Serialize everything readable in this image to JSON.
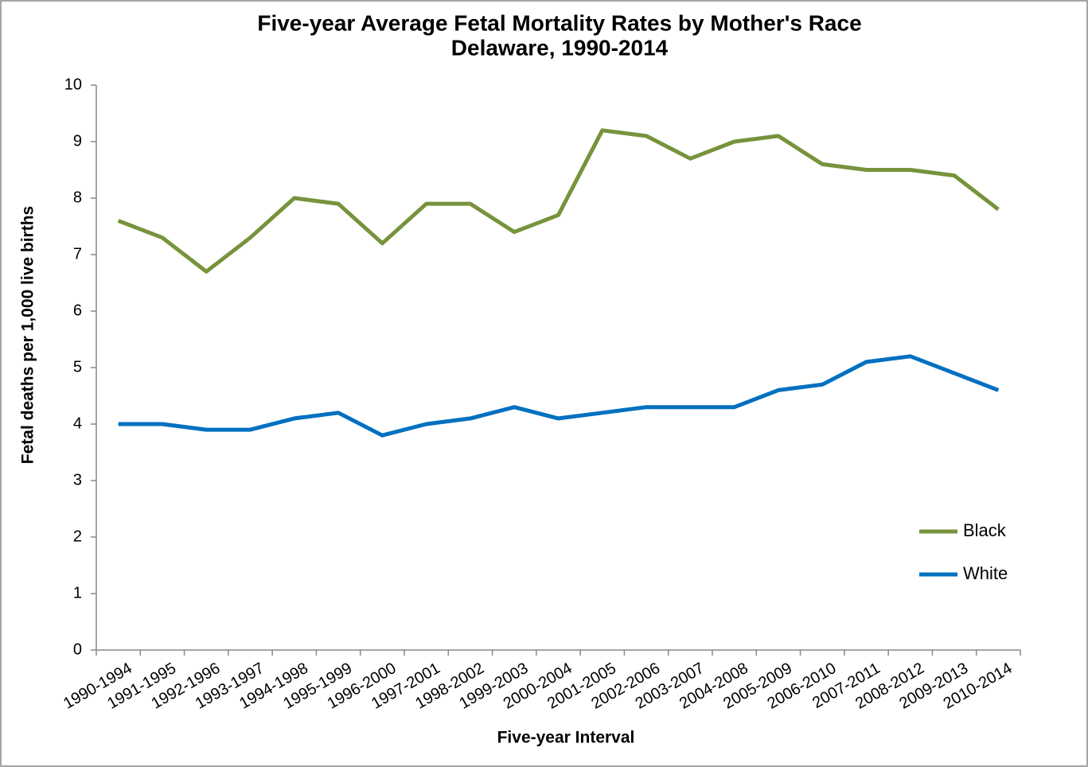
{
  "chart_data": {
    "type": "line",
    "title": "Five-year Average Fetal Mortality Rates by Mother's Race",
    "subtitle": "Delaware, 1990-2014",
    "x_label": "Five-year Interval",
    "y_label": "Fetal deaths per 1,000 live births",
    "categories": [
      "1990-1994",
      "1991-1995",
      "1992-1996",
      "1993-1997",
      "1994-1998",
      "1995-1999",
      "1996-2000",
      "1997-2001",
      "1998-2002",
      "1999-2003",
      "2000-2004",
      "2001-2005",
      "2002-2006",
      "2003-2007",
      "2004-2008",
      "2005-2009",
      "2006-2010",
      "2007-2011",
      "2008-2012",
      "2009-2013",
      "2010-2014"
    ],
    "series": [
      {
        "name": "Black",
        "color": "#77933c",
        "values": [
          7.6,
          7.3,
          6.7,
          7.3,
          8.0,
          7.9,
          7.2,
          7.9,
          7.9,
          7.4,
          7.7,
          9.2,
          9.1,
          8.7,
          9.0,
          9.1,
          8.6,
          8.5,
          8.5,
          8.4,
          7.8
        ]
      },
      {
        "name": "White",
        "color": "#0070c0",
        "values": [
          4.0,
          4.0,
          3.9,
          3.9,
          4.1,
          4.2,
          3.8,
          4.0,
          4.1,
          4.3,
          4.1,
          4.2,
          4.3,
          4.3,
          4.3,
          4.6,
          4.7,
          5.1,
          5.2,
          4.9,
          4.6
        ]
      }
    ],
    "ylim": [
      0,
      10
    ],
    "yticks": [
      0,
      1,
      2,
      3,
      4,
      5,
      6,
      7,
      8,
      9,
      10
    ],
    "grid": false,
    "legend": "right"
  }
}
